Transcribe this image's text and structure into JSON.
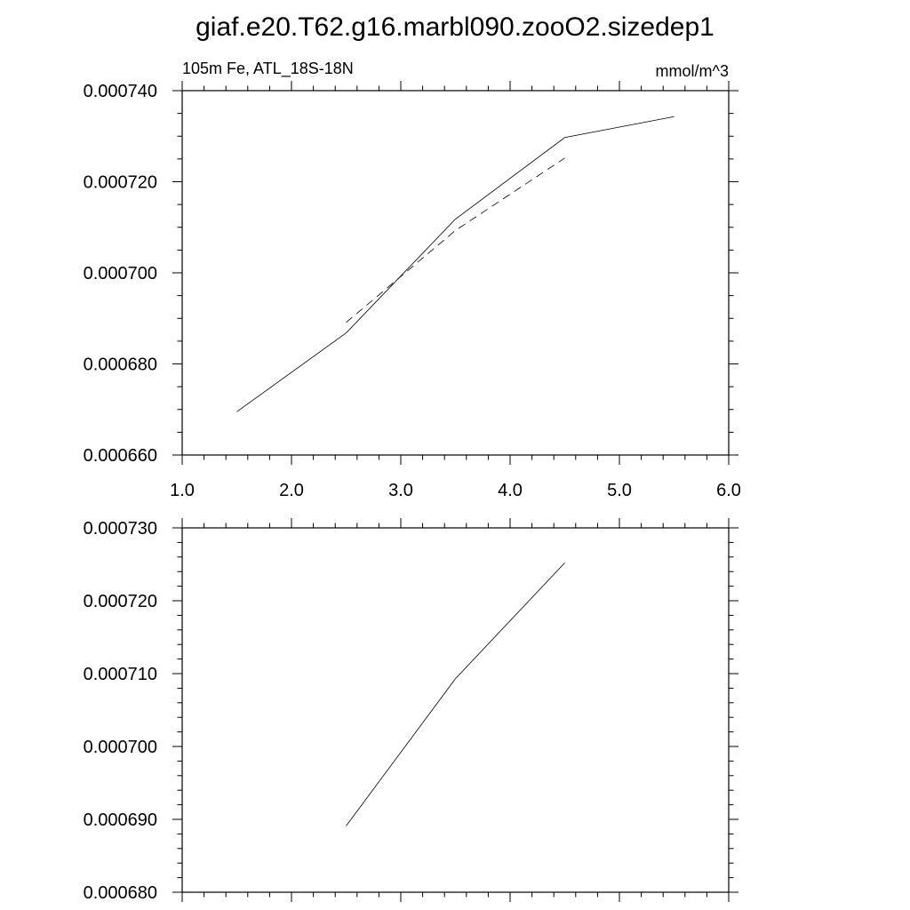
{
  "figure": {
    "title": "giaf.e20.T62.g16.marbl090.zooO2.sizedep1"
  },
  "chart_data": [
    {
      "type": "line",
      "left_label": "105m Fe, ATL_18S-18N",
      "right_label": "mmol/m^3",
      "xlim": [
        1.0,
        6.0
      ],
      "ylim": [
        0.00066,
        0.00074
      ],
      "x_ticks": [
        1.0,
        2.0,
        3.0,
        4.0,
        5.0,
        6.0
      ],
      "x_tick_labels": [
        "1.0",
        "2.0",
        "3.0",
        "4.0",
        "5.0",
        "6.0"
      ],
      "y_ticks": [
        0.00066,
        0.00068,
        0.0007,
        0.00072,
        0.00074
      ],
      "y_tick_labels": [
        "0.000660",
        "0.000680",
        "0.000700",
        "0.000720",
        "0.000740"
      ],
      "grid": false,
      "series": [
        {
          "style": "solid",
          "color": "#000000",
          "x": [
            1.5,
            2.5,
            3.5,
            4.5,
            5.5
          ],
          "values": [
            0.0006695,
            0.0006868,
            0.0007118,
            0.0007297,
            0.0007343
          ]
        },
        {
          "style": "dashed",
          "color": "#000000",
          "x": [
            2.5,
            3.5,
            4.5
          ],
          "values": [
            0.0006891,
            0.0007093,
            0.0007252
          ]
        }
      ]
    },
    {
      "type": "line",
      "xlim": [
        1.0,
        6.0
      ],
      "ylim": [
        0.00068,
        0.00073
      ],
      "x_ticks": [
        1.0,
        2.0,
        3.0,
        4.0,
        5.0,
        6.0
      ],
      "x_tick_labels": [],
      "y_ticks": [
        0.00068,
        0.00069,
        0.0007,
        0.00071,
        0.00072,
        0.00073
      ],
      "y_tick_labels": [
        "0.000680",
        "0.000690",
        "0.000700",
        "0.000710",
        "0.000720",
        "0.000730"
      ],
      "grid": false,
      "series": [
        {
          "style": "solid",
          "color": "#000000",
          "x": [
            2.5,
            3.5,
            4.5
          ],
          "values": [
            0.0006891,
            0.0007093,
            0.0007252
          ]
        }
      ]
    }
  ]
}
